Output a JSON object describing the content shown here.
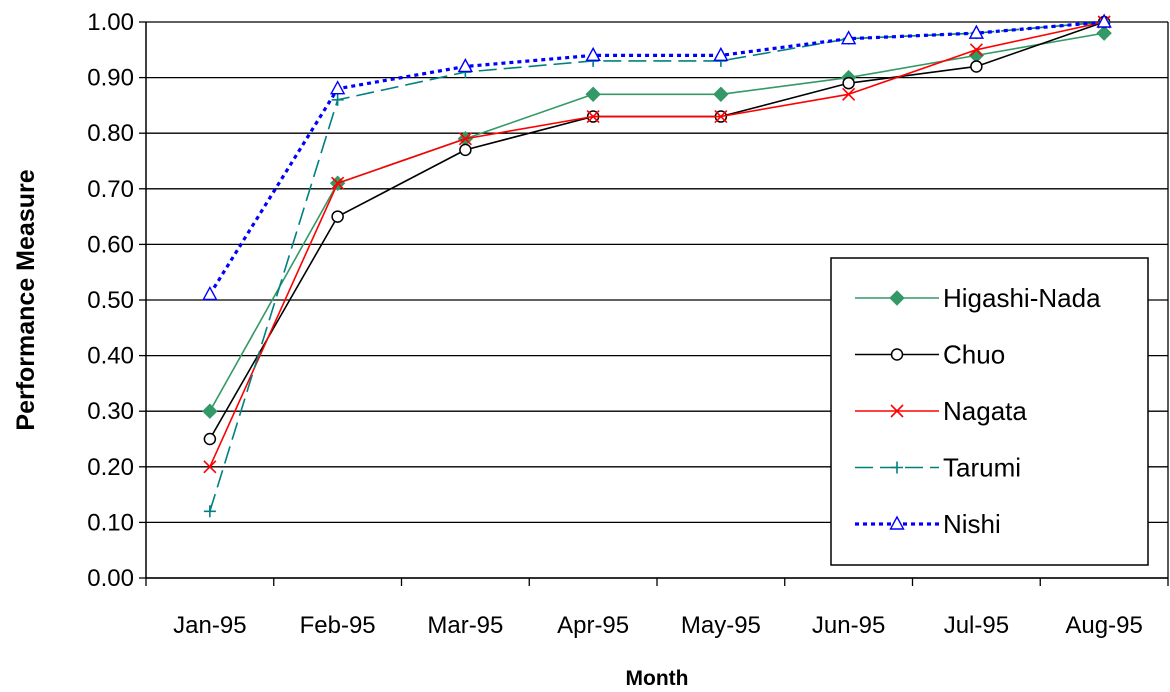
{
  "chart_data": {
    "type": "line",
    "title": "",
    "xlabel": "Month",
    "ylabel": "Performance Measure",
    "ylim": [
      0,
      1
    ],
    "yticks": [
      "0.00",
      "0.10",
      "0.20",
      "0.30",
      "0.40",
      "0.50",
      "0.60",
      "0.70",
      "0.80",
      "0.90",
      "1.00"
    ],
    "grid": "horizontal",
    "legend_position": "bottom-right",
    "categories": [
      "Jan-95",
      "Feb-95",
      "Mar-95",
      "Apr-95",
      "May-95",
      "Jun-95",
      "Jul-95",
      "Aug-95"
    ],
    "series": [
      {
        "name": "Higashi-Nada",
        "color": "#339966",
        "line": "solid",
        "marker": "diamond-filled",
        "values": [
          0.3,
          0.71,
          0.79,
          0.87,
          0.87,
          0.9,
          0.94,
          0.98
        ]
      },
      {
        "name": "Chuo",
        "color": "#000000",
        "line": "solid",
        "marker": "circle-open",
        "values": [
          0.25,
          0.65,
          0.77,
          0.83,
          0.83,
          0.89,
          0.92,
          1.0
        ]
      },
      {
        "name": "Nagata",
        "color": "#ff0000",
        "line": "solid",
        "marker": "x",
        "values": [
          0.2,
          0.71,
          0.79,
          0.83,
          0.83,
          0.87,
          0.95,
          1.0
        ]
      },
      {
        "name": "Tarumi",
        "color": "#008080",
        "line": "dashed",
        "marker": "plus",
        "values": [
          0.12,
          0.86,
          0.91,
          0.93,
          0.93,
          0.97,
          0.98,
          1.0
        ]
      },
      {
        "name": "Nishi",
        "color": "#0000ff",
        "line": "dotted",
        "marker": "triangle-open",
        "values": [
          0.51,
          0.88,
          0.92,
          0.94,
          0.94,
          0.97,
          0.98,
          1.0
        ]
      }
    ]
  }
}
